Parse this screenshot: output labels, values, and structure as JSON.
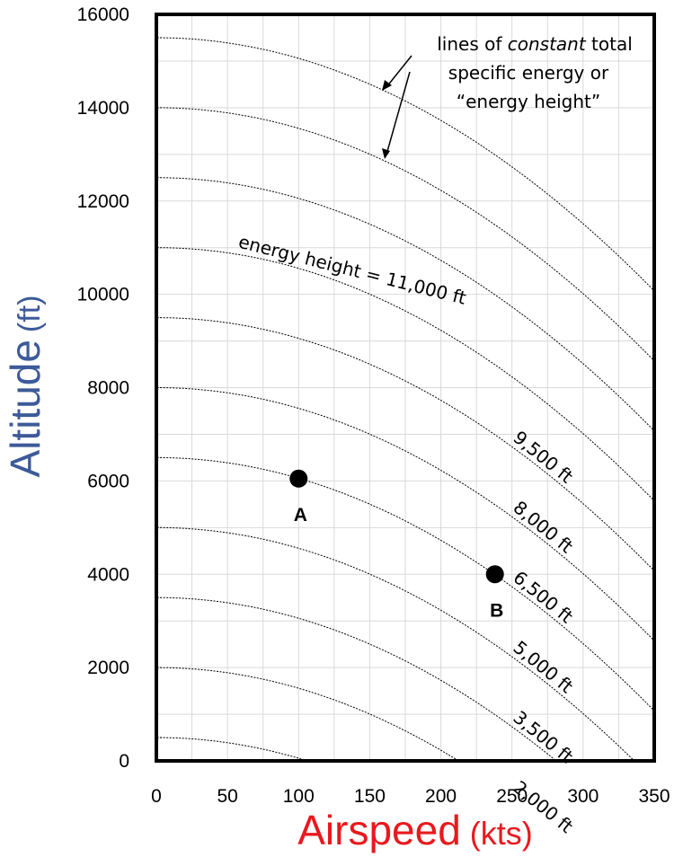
{
  "chart_data": {
    "type": "line",
    "xlabel": "Airspeed",
    "xlabel_unit": "(kts)",
    "ylabel": "Altitude",
    "ylabel_unit": "(ft)",
    "xlim": [
      0,
      350
    ],
    "ylim": [
      0,
      16000
    ],
    "x_ticks": [
      "0",
      "50",
      "100",
      "150",
      "200",
      "250",
      "300",
      "350"
    ],
    "y_ticks": [
      "0",
      "2000",
      "4000",
      "6000",
      "8000",
      "10000",
      "12000",
      "14000",
      "16000"
    ],
    "grid": true,
    "curve_note": "lines of constant energy height: altitude = energy_height - 0.0443 * airspeed^2",
    "energy_heights_ft": [
      500,
      2000,
      3500,
      5000,
      6500,
      8000,
      9500,
      11000,
      12500,
      14000,
      15500
    ],
    "curve_labels": [
      {
        "energy_height": 11000,
        "text": "energy height = 11,000 ft"
      },
      {
        "energy_height": 9500,
        "text": "9,500 ft"
      },
      {
        "energy_height": 8000,
        "text": "8,000 ft"
      },
      {
        "energy_height": 6500,
        "text": "6,500 ft"
      },
      {
        "energy_height": 5000,
        "text": "5,000 ft"
      },
      {
        "energy_height": 3500,
        "text": "3,500 ft"
      },
      {
        "energy_height": 2000,
        "text": "2,000 ft"
      }
    ],
    "points": [
      {
        "name": "A",
        "x": 100,
        "y": 6050
      },
      {
        "name": "B",
        "x": 238,
        "y": 4000
      }
    ],
    "annotation": {
      "line1": "lines of",
      "line1_italic": "constant",
      "line1_end": "total",
      "line2": "specific energy or",
      "line3": "“energy height”"
    },
    "colors": {
      "xlabel": "#e8191e",
      "ylabel": "#3d5a99",
      "grid": "#d9d9d9",
      "curve": "#000000"
    }
  }
}
